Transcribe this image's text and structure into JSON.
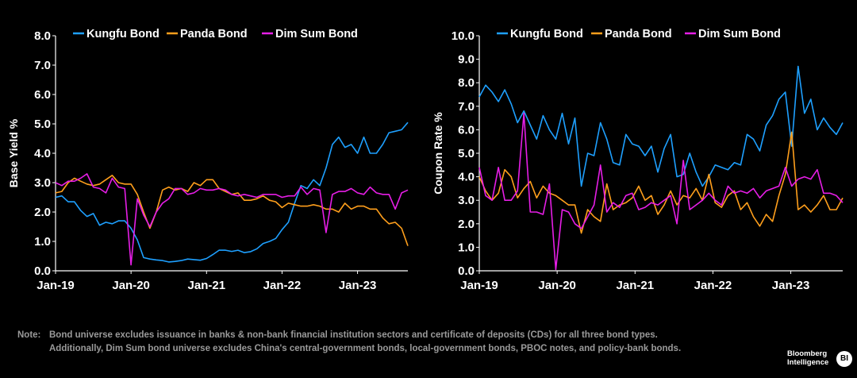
{
  "colors": {
    "Kungfu Bond": "#1ea0ff",
    "Panda Bond": "#ff9f1c",
    "Dim Sum Bond": "#e61ee6",
    "axis": "#ffffff",
    "grid": "#3a3a3a",
    "note": "#9a9a9a"
  },
  "note": {
    "label": "Note:",
    "line1": "Bond universe excludes issuance in banks & non-bank financial institution sectors and certificate of deposits (CDs) for all three bond types.",
    "line2": "Additionally, Dim Sum bond universe excludes China's central-government bonds, local-government bonds, PBOC notes, and policy-bank bonds."
  },
  "logo": {
    "line1": "Bloomberg",
    "line2": "Intelligence",
    "badge": "BI"
  },
  "chart_data": [
    {
      "type": "line",
      "ylabel": "Base Yield %",
      "xlabel": "",
      "ylim": [
        0,
        8
      ],
      "yticks": [
        "0.0",
        "1.0",
        "2.0",
        "3.0",
        "4.0",
        "5.0",
        "6.0",
        "7.0",
        "8.0"
      ],
      "xticks": [
        "Jan-19",
        "Jan-20",
        "Jan-21",
        "Jan-22",
        "Jan-23"
      ],
      "x_start": "2019-01",
      "x_end": "2023-09",
      "legend_position": "top",
      "grid": false,
      "series": [
        {
          "name": "Kungfu Bond",
          "values": [
            2.5,
            2.55,
            2.35,
            2.35,
            2.05,
            1.85,
            1.95,
            1.55,
            1.65,
            1.6,
            1.7,
            1.7,
            1.45,
            1.05,
            0.45,
            0.4,
            0.37,
            0.35,
            0.3,
            0.32,
            0.35,
            0.4,
            0.38,
            0.36,
            0.42,
            0.55,
            0.7,
            0.7,
            0.66,
            0.7,
            0.62,
            0.65,
            0.75,
            0.93,
            1.0,
            1.1,
            1.4,
            1.65,
            2.3,
            2.9,
            2.8,
            3.1,
            2.9,
            3.5,
            4.3,
            4.55,
            4.2,
            4.3,
            4.0,
            4.55,
            4.0,
            4.0,
            4.3,
            4.7,
            4.75,
            4.8,
            5.05
          ]
        },
        {
          "name": "Panda Bond",
          "values": [
            2.65,
            2.7,
            3.0,
            3.15,
            3.05,
            2.95,
            2.9,
            2.95,
            3.1,
            3.25,
            3.0,
            2.95,
            2.95,
            2.6,
            2.0,
            1.45,
            2.0,
            2.75,
            2.85,
            2.75,
            2.8,
            2.7,
            3.0,
            2.9,
            3.1,
            3.1,
            2.8,
            2.7,
            2.6,
            2.65,
            2.4,
            2.4,
            2.45,
            2.55,
            2.4,
            2.35,
            2.15,
            2.3,
            2.25,
            2.2,
            2.2,
            2.25,
            2.2,
            2.1,
            2.1,
            2.0,
            2.3,
            2.1,
            2.2,
            2.2,
            2.1,
            2.1,
            1.8,
            1.6,
            1.65,
            1.45,
            0.85
          ]
        },
        {
          "name": "Dim Sum Bond",
          "values": [
            3.0,
            2.9,
            3.05,
            3.05,
            3.15,
            3.3,
            2.85,
            2.8,
            2.65,
            3.15,
            2.85,
            2.8,
            0.2,
            2.45,
            1.9,
            1.5,
            2.0,
            2.3,
            2.45,
            2.8,
            2.8,
            2.6,
            2.65,
            2.8,
            2.75,
            2.75,
            2.8,
            2.75,
            2.6,
            2.55,
            2.6,
            2.55,
            2.5,
            2.6,
            2.6,
            2.6,
            2.5,
            2.55,
            2.55,
            2.85,
            2.6,
            2.8,
            2.75,
            1.3,
            2.6,
            2.7,
            2.7,
            2.8,
            2.65,
            2.6,
            2.85,
            2.65,
            2.6,
            2.6,
            2.1,
            2.65,
            2.75
          ]
        }
      ]
    },
    {
      "type": "line",
      "ylabel": "Coupon Rate %",
      "xlabel": "",
      "ylim": [
        0,
        10
      ],
      "yticks": [
        "0.0",
        "1.0",
        "2.0",
        "3.0",
        "4.0",
        "5.0",
        "6.0",
        "7.0",
        "8.0",
        "9.0",
        "10.0"
      ],
      "xticks": [
        "Jan-19",
        "Jan-20",
        "Jan-21",
        "Jan-22",
        "Jan-23"
      ],
      "x_start": "2019-01",
      "x_end": "2023-09",
      "legend_position": "top",
      "grid": false,
      "series": [
        {
          "name": "Kungfu Bond",
          "values": [
            7.4,
            7.9,
            7.6,
            7.2,
            7.7,
            7.1,
            6.3,
            6.8,
            6.2,
            5.6,
            6.6,
            6.0,
            5.6,
            6.7,
            5.4,
            6.5,
            3.6,
            5.0,
            4.9,
            6.3,
            5.6,
            4.6,
            4.5,
            5.8,
            5.4,
            5.3,
            4.9,
            5.3,
            4.2,
            5.2,
            5.8,
            4.0,
            4.1,
            5.0,
            4.2,
            3.6,
            4.0,
            4.5,
            4.4,
            4.3,
            4.6,
            4.5,
            5.8,
            5.6,
            5.1,
            6.2,
            6.6,
            7.3,
            7.6,
            5.3,
            8.7,
            6.7,
            7.3,
            6.0,
            6.5,
            6.1,
            5.8,
            6.3
          ]
        },
        {
          "name": "Panda Bond",
          "values": [
            4.0,
            3.4,
            3.0,
            3.3,
            4.3,
            4.0,
            3.1,
            3.5,
            3.8,
            3.1,
            3.6,
            3.3,
            3.2,
            3.0,
            2.8,
            2.8,
            1.6,
            2.6,
            2.3,
            2.1,
            3.7,
            2.6,
            2.8,
            2.9,
            3.1,
            3.6,
            3.0,
            3.2,
            2.4,
            2.8,
            3.4,
            2.8,
            3.2,
            3.1,
            3.5,
            3.0,
            4.1,
            2.9,
            2.7,
            3.2,
            3.4,
            2.6,
            2.9,
            2.3,
            1.9,
            2.4,
            2.1,
            3.2,
            4.1,
            5.9,
            2.6,
            2.8,
            2.5,
            2.8,
            3.2,
            2.6,
            2.6,
            3.1
          ]
        },
        {
          "name": "Dim Sum Bond",
          "values": [
            4.4,
            3.2,
            3.0,
            4.4,
            3.0,
            3.0,
            3.4,
            6.7,
            2.5,
            2.5,
            2.4,
            3.7,
            0.05,
            2.6,
            2.5,
            2.0,
            1.8,
            2.3,
            2.8,
            4.5,
            2.5,
            2.9,
            2.7,
            3.2,
            3.3,
            2.6,
            2.7,
            2.9,
            2.8,
            3.0,
            3.2,
            2.0,
            4.7,
            2.6,
            2.8,
            3.0,
            3.3,
            3.0,
            2.8,
            3.6,
            3.3,
            3.4,
            3.3,
            3.5,
            3.1,
            3.4,
            3.5,
            3.6,
            4.4,
            3.6,
            3.9,
            4.0,
            3.9,
            4.3,
            3.3,
            3.3,
            3.2,
            2.9
          ]
        }
      ]
    }
  ]
}
